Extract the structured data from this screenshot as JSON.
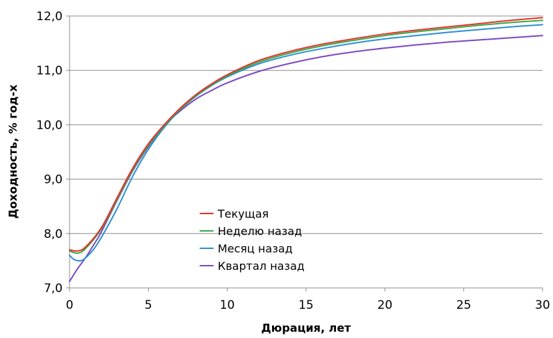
{
  "chart_data": {
    "type": "line",
    "xlabel": "Дюрация,  лет",
    "ylabel": "Доходность, % год-х",
    "xlim": [
      0,
      30
    ],
    "ylim": [
      7.0,
      12.0
    ],
    "x_ticks": [
      0,
      5,
      10,
      15,
      20,
      25,
      30
    ],
    "x_tick_labels": [
      "0",
      "5",
      "10",
      "15",
      "20",
      "25",
      "30"
    ],
    "y_ticks": [
      7.0,
      8.0,
      9.0,
      10.0,
      11.0,
      12.0
    ],
    "y_tick_labels": [
      "7,0",
      "8,0",
      "9,0",
      "10,0",
      "11,0",
      "12,0"
    ],
    "grid": "horizontal",
    "legend_position": "center-left",
    "series": [
      {
        "name": "Текущая",
        "color": "#e8312a",
        "x": [
          0,
          0.5,
          1,
          2,
          3,
          4,
          5,
          6,
          7,
          8,
          9,
          10,
          12,
          14,
          16,
          18,
          20,
          22,
          24,
          26,
          28,
          30
        ],
        "y": [
          7.7,
          7.68,
          7.75,
          8.1,
          8.65,
          9.2,
          9.65,
          10.0,
          10.3,
          10.55,
          10.75,
          10.92,
          11.18,
          11.35,
          11.48,
          11.58,
          11.67,
          11.74,
          11.8,
          11.86,
          11.92,
          11.97
        ]
      },
      {
        "name": "Неделю  назад",
        "color": "#3aaa46",
        "x": [
          0,
          0.5,
          1,
          2,
          3,
          4,
          5,
          6,
          7,
          8,
          9,
          10,
          12,
          14,
          16,
          18,
          20,
          22,
          24,
          26,
          28,
          30
        ],
        "y": [
          7.68,
          7.64,
          7.72,
          8.08,
          8.62,
          9.17,
          9.62,
          9.98,
          10.28,
          10.53,
          10.73,
          10.9,
          11.15,
          11.32,
          11.45,
          11.55,
          11.64,
          11.71,
          11.77,
          11.83,
          11.88,
          11.92
        ]
      },
      {
        "name": "Месяц назад",
        "color": "#2f8fd0",
        "x": [
          0,
          0.3,
          0.7,
          1,
          1.5,
          2,
          3,
          4,
          5,
          6,
          7,
          8,
          9,
          10,
          12,
          14,
          16,
          18,
          20,
          22,
          24,
          26,
          28,
          30
        ],
        "y": [
          7.6,
          7.52,
          7.5,
          7.55,
          7.7,
          7.92,
          8.45,
          9.05,
          9.55,
          9.95,
          10.27,
          10.52,
          10.72,
          10.88,
          11.12,
          11.28,
          11.4,
          11.5,
          11.58,
          11.64,
          11.7,
          11.75,
          11.8,
          11.84
        ]
      },
      {
        "name": "Квартал назад",
        "color": "#7b49c4",
        "x": [
          0,
          0.5,
          1,
          1.5,
          2,
          3,
          4,
          5,
          6,
          7,
          8,
          9,
          10,
          12,
          14,
          16,
          18,
          20,
          22,
          24,
          26,
          28,
          30
        ],
        "y": [
          7.12,
          7.35,
          7.55,
          7.78,
          8.02,
          8.6,
          9.15,
          9.6,
          9.98,
          10.25,
          10.47,
          10.63,
          10.77,
          10.98,
          11.13,
          11.25,
          11.34,
          11.41,
          11.47,
          11.52,
          11.56,
          11.6,
          11.64
        ]
      }
    ]
  }
}
